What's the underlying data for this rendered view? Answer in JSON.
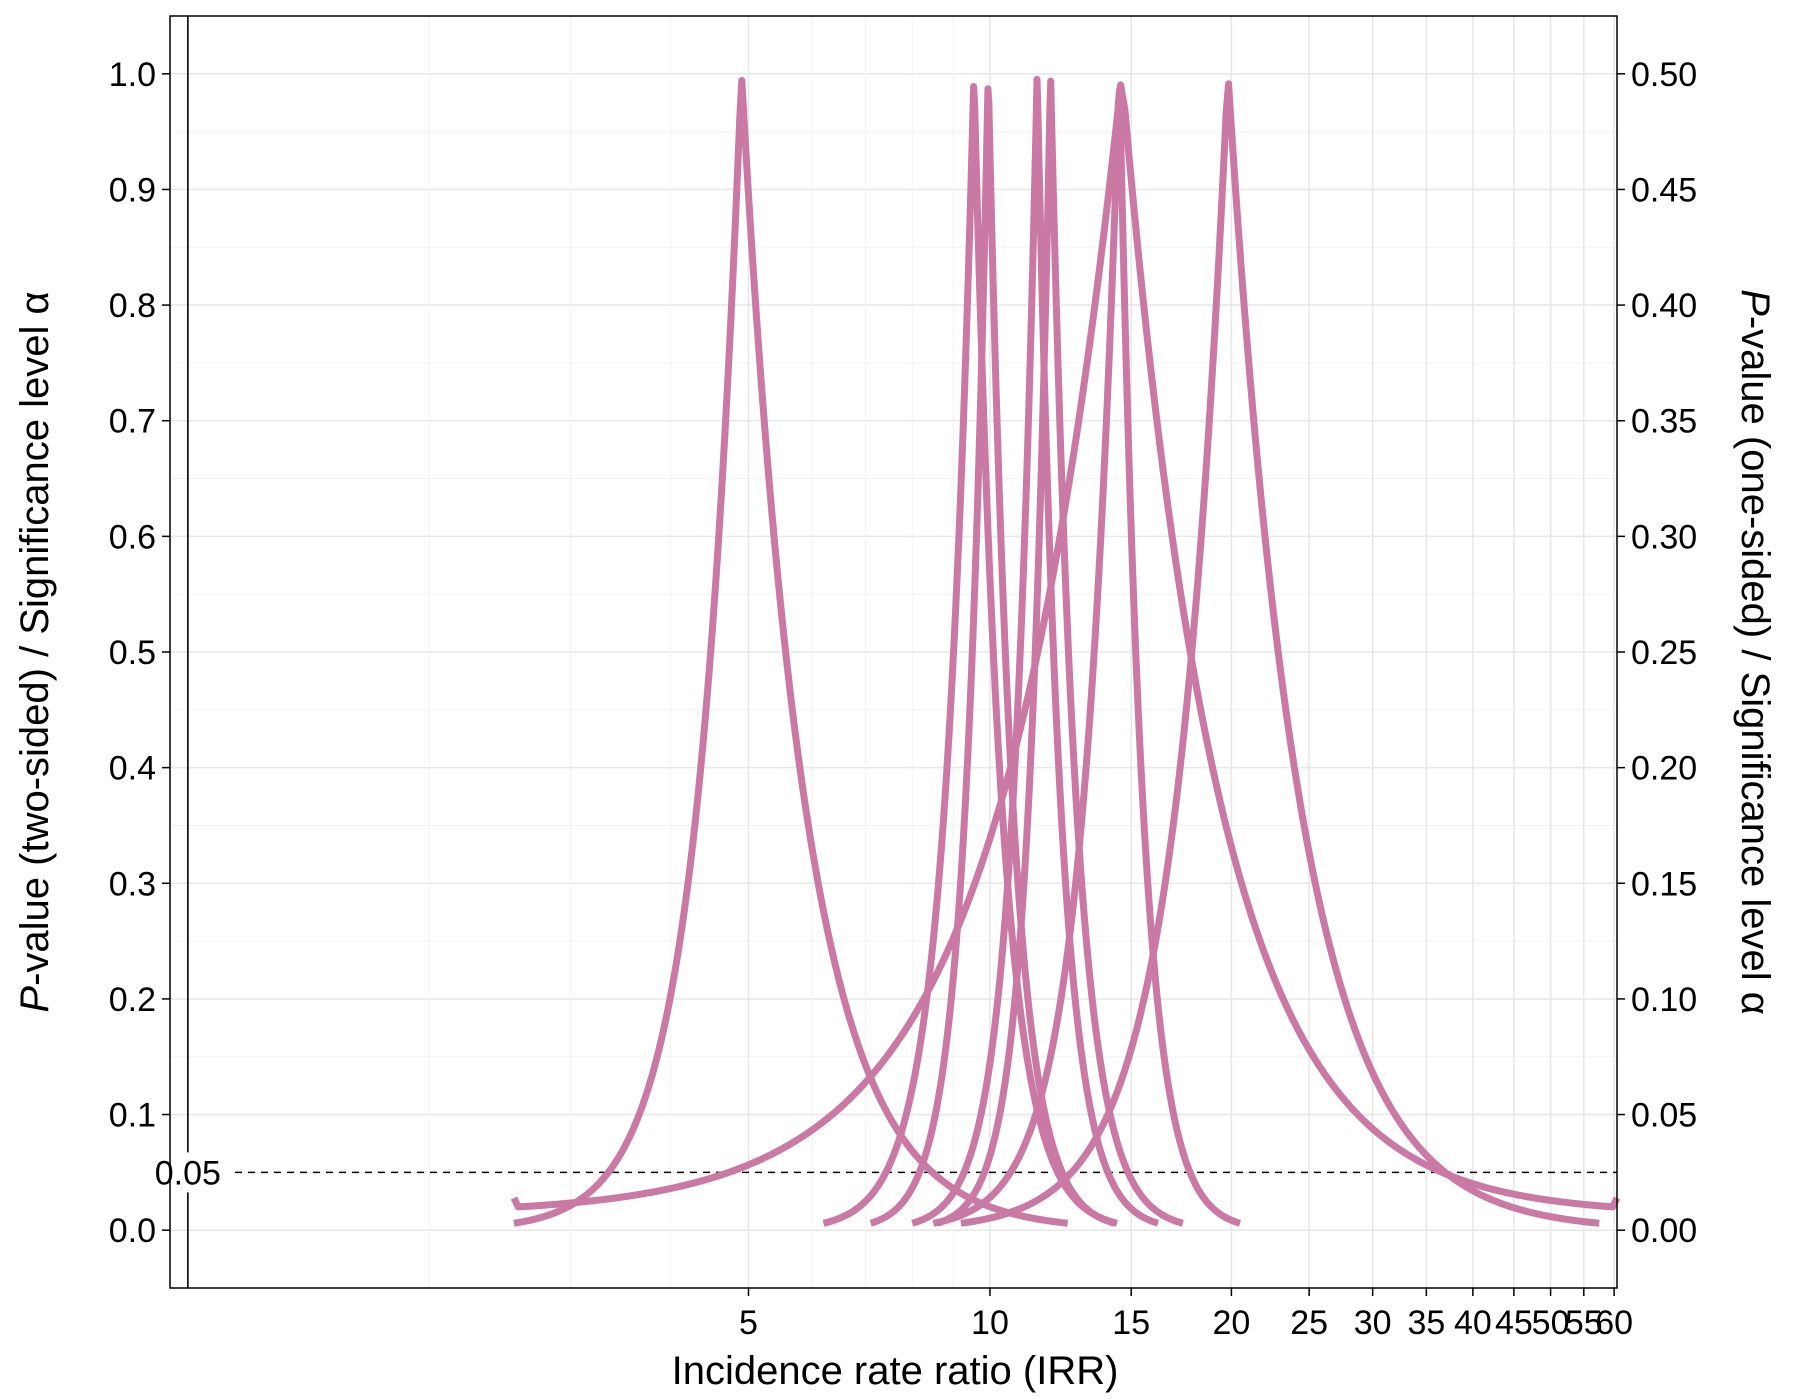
{
  "chart_data": {
    "type": "line",
    "x_scale": "log",
    "xlabel": "Incidence rate ratio (IRR)",
    "ylabel_left": {
      "italic": "P",
      "text": "-value (two-sided) / Significance level α"
    },
    "ylabel_right": {
      "italic": "P",
      "text": "-value (one-sided) / Significance level α"
    },
    "xlim": [
      0.95,
      60.5
    ],
    "ylim": [
      -0.05,
      1.05
    ],
    "x_ticks": [
      {
        "value": 5,
        "label": "5"
      },
      {
        "value": 10,
        "label": "10"
      },
      {
        "value": 15,
        "label": "15"
      },
      {
        "value": 20,
        "label": "20"
      },
      {
        "value": 25,
        "label": "25"
      },
      {
        "value": 30,
        "label": "30"
      },
      {
        "value": 35,
        "label": "35"
      },
      {
        "value": 40,
        "label": "40"
      },
      {
        "value": 45,
        "label": "45"
      },
      {
        "value": 50,
        "label": "50"
      },
      {
        "value": 55,
        "label": "55"
      },
      {
        "value": 60,
        "label": "60"
      }
    ],
    "y_ticks_left": [
      {
        "value": 0.0,
        "label": "0.0"
      },
      {
        "value": 0.1,
        "label": "0.1"
      },
      {
        "value": 0.2,
        "label": "0.2"
      },
      {
        "value": 0.3,
        "label": "0.3"
      },
      {
        "value": 0.4,
        "label": "0.4"
      },
      {
        "value": 0.5,
        "label": "0.5"
      },
      {
        "value": 0.6,
        "label": "0.6"
      },
      {
        "value": 0.7,
        "label": "0.7"
      },
      {
        "value": 0.8,
        "label": "0.8"
      },
      {
        "value": 0.9,
        "label": "0.9"
      },
      {
        "value": 1.0,
        "label": "1.0"
      }
    ],
    "y_ticks_right": [
      {
        "value": 0.0,
        "label": "0.00"
      },
      {
        "value": 0.1,
        "label": "0.05"
      },
      {
        "value": 0.2,
        "label": "0.10"
      },
      {
        "value": 0.3,
        "label": "0.15"
      },
      {
        "value": 0.4,
        "label": "0.20"
      },
      {
        "value": 0.5,
        "label": "0.25"
      },
      {
        "value": 0.6,
        "label": "0.30"
      },
      {
        "value": 0.7,
        "label": "0.35"
      },
      {
        "value": 0.8,
        "label": "0.40"
      },
      {
        "value": 0.9,
        "label": "0.45"
      },
      {
        "value": 1.0,
        "label": "0.50"
      }
    ],
    "reference_lines": [
      {
        "orientation": "horizontal",
        "value": 0.05,
        "label": "0.05",
        "style": "dashed"
      },
      {
        "orientation": "vertical",
        "value": 1,
        "style": "solid"
      }
    ],
    "grid": true,
    "line_color": "#c979a4",
    "series": [
      {
        "peak": 4.9,
        "x_min": 2.55,
        "x_max": 12.5,
        "min_p": 0.0
      },
      {
        "peak": 9.55,
        "x_min": 6.2,
        "x_max": 14.4,
        "min_p": 0.0
      },
      {
        "peak": 9.95,
        "x_min": 7.1,
        "x_max": 14.3,
        "min_p": 0.0
      },
      {
        "peak": 11.45,
        "x_min": 8.0,
        "x_max": 16.2,
        "min_p": 0.0
      },
      {
        "peak": 11.9,
        "x_min": 8.6,
        "x_max": 17.4,
        "min_p": 0.0
      },
      {
        "peak": 14.5,
        "x_min": 8.5,
        "x_max": 20.5,
        "min_p": 0.0
      },
      {
        "peak": 14.6,
        "x_min": 2.55,
        "x_max": 60.5,
        "min_p": 0.014
      },
      {
        "peak": 19.8,
        "x_min": 9.2,
        "x_max": 57.5,
        "min_p": 0.0
      }
    ]
  },
  "colors": {
    "line": "#c979a4",
    "grid": "#e8e8e8",
    "axis": "#000000"
  }
}
